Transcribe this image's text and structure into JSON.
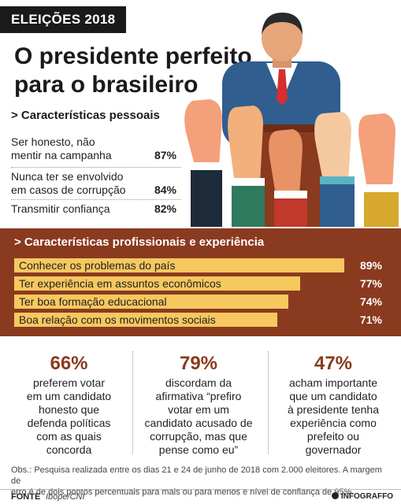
{
  "header": {
    "tag": "ELEIÇÕES 2018",
    "title_line1": "O presidente perfeito",
    "title_line2": "para o brasileiro"
  },
  "colors": {
    "accent": "#8a3a1f",
    "bar": "#f6c85f",
    "dark": "#1a1a1a"
  },
  "chart_data": [
    {
      "type": "table",
      "title": "> Características pessoais",
      "rows": [
        {
          "label_line1": "Ser honesto, não",
          "label_line2": "mentir na campanha",
          "value": 87,
          "display": "87%"
        },
        {
          "label_line1": "Nunca ter se envolvido",
          "label_line2": "em casos de corrupção",
          "value": 84,
          "display": "84%"
        },
        {
          "label_line1": "Transmitir confiança",
          "label_line2": "",
          "value": 82,
          "display": "82%"
        }
      ]
    },
    {
      "type": "bar",
      "title": "> Características profissionais e experiência",
      "categories": [
        "Conhecer os problemas do país",
        "Ter experiência em assuntos econômicos",
        "Ter boa formação educacional",
        "Boa relação com os movimentos sociais"
      ],
      "values": [
        89,
        77,
        74,
        71
      ],
      "labels": [
        "89%",
        "77%",
        "74%",
        "71%"
      ]
    }
  ],
  "stats": [
    {
      "pct": "66%",
      "lines": [
        "preferem votar",
        "em um candidato",
        "honesto que",
        "defenda políticas",
        "com as quais",
        "concorda"
      ]
    },
    {
      "pct": "79%",
      "lines": [
        "discordam da",
        "afirmativa “prefiro",
        "votar em um",
        "candidato acusado de",
        "corrupção, mas que",
        "pense como eu”"
      ]
    },
    {
      "pct": "47%",
      "lines": [
        "acham importante",
        "que um candidato",
        "à presidente tenha",
        "experiência como",
        "prefeito ou",
        "governador"
      ]
    }
  ],
  "footnote": {
    "obs_line1": "Obs.: Pesquisa realizada entre os dias 21 e 24 de junho de 2018 com 2.000 eleitores. A margem de",
    "obs_line2": "erro é de dois pontos percentuais para mais ou para menos e nível de confiança de 95%.",
    "fonte_label": "FONTE",
    "fonte_source": "Ibope/CNI",
    "logo": "INFOGRAFFO"
  }
}
